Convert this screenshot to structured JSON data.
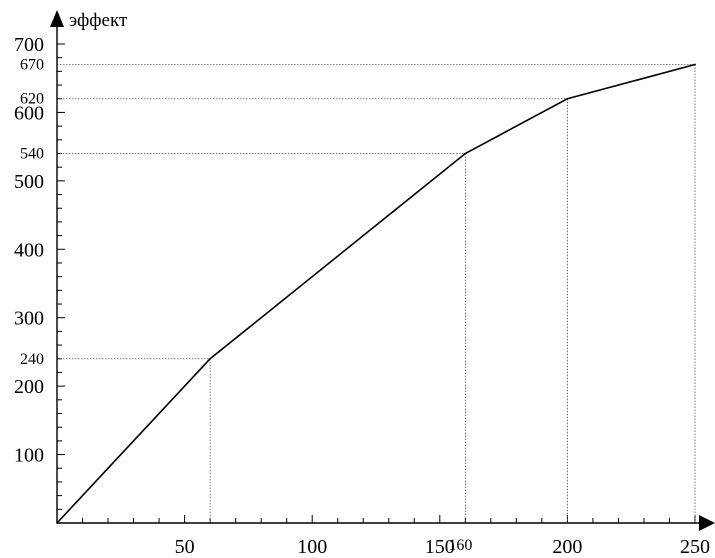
{
  "chart_data": {
    "type": "line",
    "title": "",
    "xlabel": "",
    "ylabel": "эффект",
    "x": [
      0,
      60,
      160,
      200,
      250
    ],
    "series": [
      {
        "values": [
          0,
          240,
          540,
          620,
          670
        ],
        "color": "#000000"
      }
    ],
    "xlim": [
      0,
      250
    ],
    "ylim": [
      0,
      700
    ],
    "x_ticks_major": [
      "50",
      "100",
      "150",
      "200",
      "250"
    ],
    "x_ticks_extra": [
      "160"
    ],
    "y_ticks_major": [
      "100",
      "200",
      "300",
      "400",
      "500",
      "600",
      "700"
    ],
    "y_ticks_extra": [
      "240",
      "540",
      "620",
      "670"
    ],
    "grid": false,
    "legend": "none"
  }
}
